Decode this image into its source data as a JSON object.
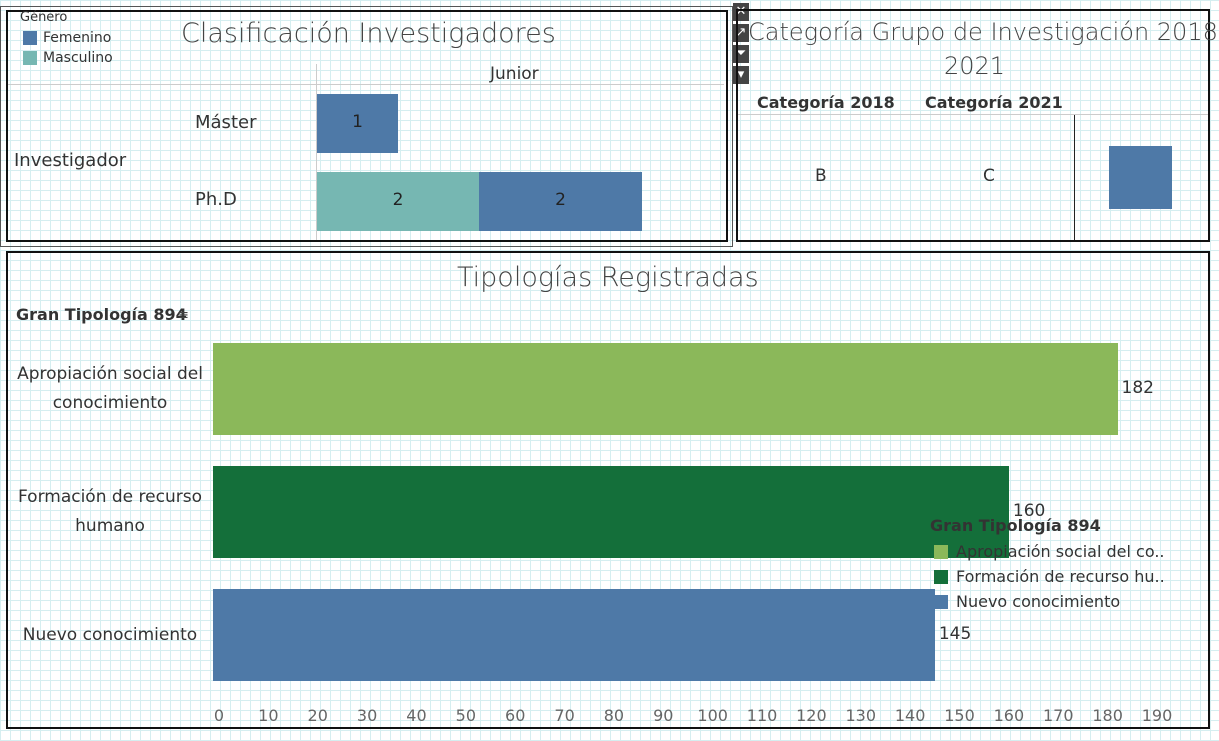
{
  "colors": {
    "femenino": "#4e79a7",
    "masculino": "#76b7b2",
    "apropiacion": "#8bb85a",
    "formacion": "#146f3a",
    "nuevo": "#4e79a7"
  },
  "panel1": {
    "title": "Clasificación Investigadores",
    "legend_title": "Género",
    "legend_items": [
      "Femenino",
      "Masculino"
    ],
    "column_header": "Junior",
    "row_group": "Investigador",
    "rows": [
      "Máster",
      "Ph.D"
    ]
  },
  "panel2": {
    "title_line1": "Categoría Grupo de Investigación 2018 -",
    "title_line2": "2021",
    "headers": [
      "Categoría 2018",
      "Categoría 2021"
    ],
    "values": [
      "B",
      "C"
    ]
  },
  "toolbar": {
    "close": "✕",
    "popout": "↗",
    "filter": "⏷",
    "more": "▾"
  },
  "panel3": {
    "title": "Tipologías Registradas",
    "axis_header": "Gran Tipología 894",
    "sort_icon": "≡",
    "legend_title": "Gran Tipología 894",
    "legend_items": [
      "Apropiación social del co..",
      "Formación de recurso hu..",
      "Nuevo conocimiento"
    ]
  },
  "chart_data": [
    {
      "type": "bar",
      "title": "Clasificación Investigadores",
      "orientation": "horizontal-stacked",
      "column": "Junior",
      "categories": [
        "Máster",
        "Ph.D"
      ],
      "series": [
        {
          "name": "Masculino",
          "values": [
            0,
            2
          ]
        },
        {
          "name": "Femenino",
          "values": [
            1,
            2
          ]
        }
      ],
      "legend": "top-left"
    },
    {
      "type": "bar",
      "title": "Tipologías Registradas",
      "orientation": "horizontal",
      "categories_lines": [
        [
          "Apropiación social del",
          "conocimiento"
        ],
        [
          "Formación de recurso",
          "humano"
        ],
        [
          "Nuevo conocimiento"
        ]
      ],
      "values": [
        182,
        160,
        145
      ],
      "xticks": [
        0,
        10,
        20,
        30,
        40,
        50,
        60,
        70,
        80,
        90,
        100,
        110,
        120,
        130,
        140,
        150,
        160,
        170,
        180,
        190
      ],
      "xlim": [
        0,
        190
      ],
      "legend": "bottom-right"
    }
  ]
}
